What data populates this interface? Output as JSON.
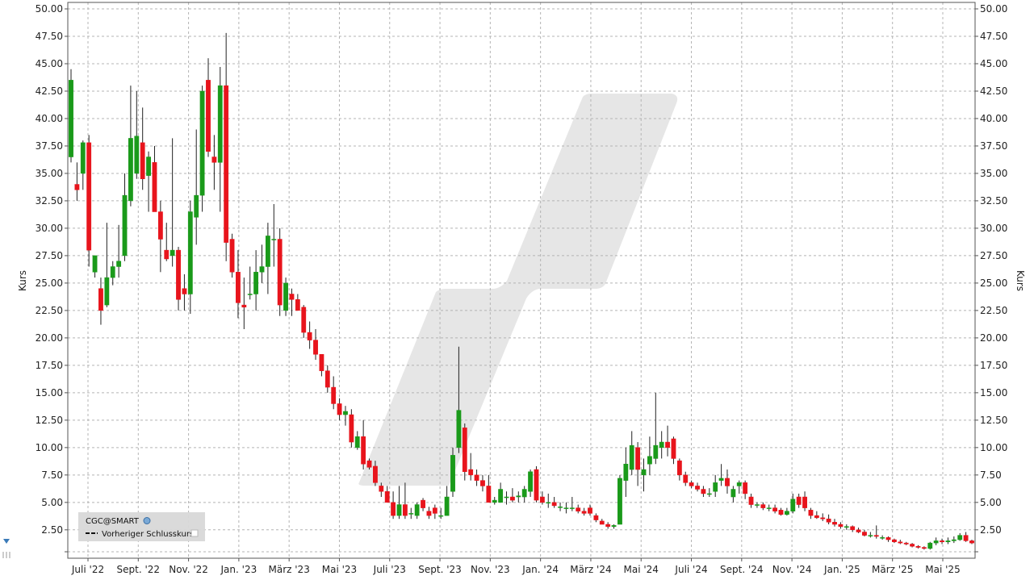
{
  "chart_data": {
    "type": "candlestick",
    "ylabel": "Kurs",
    "ylim": [
      0,
      51
    ],
    "yticks": [
      2.5,
      5,
      7.5,
      10,
      12.5,
      15,
      17.5,
      20,
      22.5,
      25,
      27.5,
      30,
      32.5,
      35,
      37.5,
      40,
      42.5,
      45,
      47.5,
      50
    ],
    "ytick_labels": [
      "2.50",
      "5.00",
      "7.50",
      "10.00",
      "12.50",
      "15.00",
      "17.50",
      "20.00",
      "22.50",
      "25.00",
      "27.50",
      "30.00",
      "32.50",
      "35.00",
      "37.50",
      "40.00",
      "42.50",
      "45.00",
      "47.50",
      "50.00"
    ],
    "xticks": [
      "Juli '22",
      "Sept. '22",
      "Nov. '22",
      "Jan. '23",
      "März '23",
      "Mai '23",
      "Juli '23",
      "Sept. '23",
      "Nov. '23",
      "Jan. '24",
      "März '24",
      "Mai '24",
      "Juli '24",
      "Sept. '24",
      "Nov. '24",
      "Jan. '25",
      "März '25",
      "Mai '25"
    ],
    "grid": true,
    "up_color": "#1a9a1a",
    "down_color": "#e8141c",
    "candles": [
      {
        "o": 36.5,
        "h": 44.5,
        "l": 36.0,
        "c": 43.5
      },
      {
        "o": 34.0,
        "h": 36.0,
        "l": 32.5,
        "c": 33.5
      },
      {
        "o": 35.0,
        "h": 38.0,
        "l": 33.5,
        "c": 37.8
      },
      {
        "o": 37.8,
        "h": 38.5,
        "l": 26.5,
        "c": 28.0
      },
      {
        "o": 26.0,
        "h": 27.5,
        "l": 25.5,
        "c": 27.5
      },
      {
        "o": 24.5,
        "h": 25.5,
        "l": 21.2,
        "c": 22.5
      },
      {
        "o": 23.0,
        "h": 30.5,
        "l": 22.8,
        "c": 25.5
      },
      {
        "o": 25.5,
        "h": 27.0,
        "l": 24.8,
        "c": 26.5
      },
      {
        "o": 26.5,
        "h": 30.3,
        "l": 25.5,
        "c": 27.0
      },
      {
        "o": 27.5,
        "h": 35.0,
        "l": 27.0,
        "c": 33.0
      },
      {
        "o": 32.5,
        "h": 43.0,
        "l": 32.0,
        "c": 38.2
      },
      {
        "o": 35.0,
        "h": 42.5,
        "l": 34.5,
        "c": 38.4
      },
      {
        "o": 37.8,
        "h": 41.0,
        "l": 33.5,
        "c": 34.5
      },
      {
        "o": 34.8,
        "h": 37.0,
        "l": 31.5,
        "c": 36.5
      },
      {
        "o": 36.0,
        "h": 37.5,
        "l": 31.5,
        "c": 31.5
      },
      {
        "o": 31.5,
        "h": 32.5,
        "l": 26.0,
        "c": 29.0
      },
      {
        "o": 28.0,
        "h": 30.5,
        "l": 27.0,
        "c": 27.2
      },
      {
        "o": 27.5,
        "h": 38.2,
        "l": 26.5,
        "c": 28.0
      },
      {
        "o": 28.0,
        "h": 28.3,
        "l": 22.5,
        "c": 23.5
      },
      {
        "o": 24.5,
        "h": 25.8,
        "l": 22.5,
        "c": 24.0
      },
      {
        "o": 24.0,
        "h": 32.5,
        "l": 22.2,
        "c": 31.5
      },
      {
        "o": 31.0,
        "h": 39.0,
        "l": 28.5,
        "c": 33.0
      },
      {
        "o": 33.0,
        "h": 43.0,
        "l": 31.5,
        "c": 42.5
      },
      {
        "o": 43.5,
        "h": 45.5,
        "l": 36.5,
        "c": 37.0
      },
      {
        "o": 36.5,
        "h": 38.5,
        "l": 33.5,
        "c": 36.0
      },
      {
        "o": 36.0,
        "h": 44.7,
        "l": 31.5,
        "c": 43.0
      },
      {
        "o": 43.0,
        "h": 47.8,
        "l": 27.0,
        "c": 28.7
      },
      {
        "o": 29.0,
        "h": 29.5,
        "l": 25.5,
        "c": 26.0
      },
      {
        "o": 26.0,
        "h": 28.0,
        "l": 21.8,
        "c": 23.2
      },
      {
        "o": 23.0,
        "h": 25.5,
        "l": 20.8,
        "c": 22.8
      },
      {
        "o": 24.0,
        "h": 26.5,
        "l": 23.5,
        "c": 24.0
      },
      {
        "o": 24.0,
        "h": 28.0,
        "l": 22.5,
        "c": 26.0
      },
      {
        "o": 26.0,
        "h": 28.5,
        "l": 25.0,
        "c": 26.5
      },
      {
        "o": 26.5,
        "h": 30.5,
        "l": 24.0,
        "c": 29.3
      },
      {
        "o": 29.0,
        "h": 32.2,
        "l": 26.5,
        "c": 29.0
      },
      {
        "o": 29.0,
        "h": 30.0,
        "l": 22.0,
        "c": 23.0
      },
      {
        "o": 22.5,
        "h": 25.5,
        "l": 22.0,
        "c": 25.0
      },
      {
        "o": 24.0,
        "h": 24.5,
        "l": 22.0,
        "c": 23.5
      },
      {
        "o": 23.5,
        "h": 24.0,
        "l": 22.5,
        "c": 22.5
      },
      {
        "o": 22.8,
        "h": 23.0,
        "l": 20.0,
        "c": 20.5
      },
      {
        "o": 20.5,
        "h": 21.5,
        "l": 19.0,
        "c": 19.8
      },
      {
        "o": 19.8,
        "h": 20.8,
        "l": 18.0,
        "c": 18.5
      },
      {
        "o": 18.5,
        "h": 18.5,
        "l": 16.5,
        "c": 17.0
      },
      {
        "o": 17.0,
        "h": 17.5,
        "l": 15.0,
        "c": 15.5
      },
      {
        "o": 15.5,
        "h": 16.5,
        "l": 13.5,
        "c": 14.0
      },
      {
        "o": 14.0,
        "h": 14.5,
        "l": 12.5,
        "c": 13.0
      },
      {
        "o": 13.0,
        "h": 13.8,
        "l": 12.0,
        "c": 13.3
      },
      {
        "o": 13.0,
        "h": 13.5,
        "l": 10.0,
        "c": 10.5
      },
      {
        "o": 10.0,
        "h": 11.5,
        "l": 9.8,
        "c": 11.0
      },
      {
        "o": 11.0,
        "h": 12.5,
        "l": 8.0,
        "c": 8.5
      },
      {
        "o": 8.8,
        "h": 9.0,
        "l": 8.0,
        "c": 8.2
      },
      {
        "o": 8.3,
        "h": 8.8,
        "l": 6.5,
        "c": 6.8
      },
      {
        "o": 6.5,
        "h": 6.8,
        "l": 5.5,
        "c": 6.0
      },
      {
        "o": 6.0,
        "h": 6.5,
        "l": 5.0,
        "c": 5.0
      },
      {
        "o": 5.0,
        "h": 6.0,
        "l": 3.5,
        "c": 3.8
      },
      {
        "o": 3.8,
        "h": 6.5,
        "l": 3.5,
        "c": 4.8
      },
      {
        "o": 4.8,
        "h": 6.8,
        "l": 3.5,
        "c": 3.8
      },
      {
        "o": 4.0,
        "h": 4.5,
        "l": 3.5,
        "c": 4.0
      },
      {
        "o": 3.8,
        "h": 5.0,
        "l": 3.5,
        "c": 4.8
      },
      {
        "o": 5.2,
        "h": 5.4,
        "l": 4.2,
        "c": 4.5
      },
      {
        "o": 4.2,
        "h": 4.6,
        "l": 3.5,
        "c": 3.8
      },
      {
        "o": 4.5,
        "h": 4.8,
        "l": 3.5,
        "c": 4.0
      },
      {
        "o": 3.8,
        "h": 4.5,
        "l": 3.5,
        "c": 3.8
      },
      {
        "o": 3.8,
        "h": 6.5,
        "l": 3.8,
        "c": 5.5
      },
      {
        "o": 6.0,
        "h": 10.0,
        "l": 5.5,
        "c": 9.3
      },
      {
        "o": 10.0,
        "h": 19.2,
        "l": 9.5,
        "c": 13.4
      },
      {
        "o": 11.8,
        "h": 12.2,
        "l": 7.0,
        "c": 7.8
      },
      {
        "o": 8.0,
        "h": 9.5,
        "l": 7.0,
        "c": 7.5
      },
      {
        "o": 7.5,
        "h": 8.0,
        "l": 6.5,
        "c": 7.0
      },
      {
        "o": 7.0,
        "h": 7.5,
        "l": 6.0,
        "c": 6.5
      },
      {
        "o": 6.5,
        "h": 7.5,
        "l": 5.0,
        "c": 5.0
      },
      {
        "o": 5.0,
        "h": 5.5,
        "l": 4.8,
        "c": 5.2
      },
      {
        "o": 5.0,
        "h": 6.8,
        "l": 5.0,
        "c": 6.2
      },
      {
        "o": 5.5,
        "h": 6.0,
        "l": 4.8,
        "c": 5.5
      },
      {
        "o": 5.5,
        "h": 6.3,
        "l": 5.0,
        "c": 5.2
      },
      {
        "o": 5.5,
        "h": 6.0,
        "l": 5.0,
        "c": 5.6
      },
      {
        "o": 5.5,
        "h": 6.5,
        "l": 5.0,
        "c": 6.2
      },
      {
        "o": 6.0,
        "h": 8.0,
        "l": 5.5,
        "c": 7.8
      },
      {
        "o": 8.0,
        "h": 8.3,
        "l": 5.0,
        "c": 5.2
      },
      {
        "o": 5.5,
        "h": 6.0,
        "l": 4.8,
        "c": 5.0
      },
      {
        "o": 5.0,
        "h": 5.8,
        "l": 4.5,
        "c": 5.0
      },
      {
        "o": 5.0,
        "h": 5.5,
        "l": 4.5,
        "c": 4.7
      },
      {
        "o": 4.6,
        "h": 5.0,
        "l": 4.2,
        "c": 4.6
      },
      {
        "o": 4.5,
        "h": 5.0,
        "l": 4.0,
        "c": 4.5
      },
      {
        "o": 4.5,
        "h": 5.5,
        "l": 4.2,
        "c": 4.5
      },
      {
        "o": 4.5,
        "h": 4.8,
        "l": 4.0,
        "c": 4.2
      },
      {
        "o": 4.2,
        "h": 4.5,
        "l": 3.8,
        "c": 4.0
      },
      {
        "o": 4.5,
        "h": 4.8,
        "l": 3.8,
        "c": 4.0
      },
      {
        "o": 3.8,
        "h": 4.0,
        "l": 3.2,
        "c": 3.4
      },
      {
        "o": 3.3,
        "h": 3.5,
        "l": 3.0,
        "c": 3.0
      },
      {
        "o": 3.0,
        "h": 3.2,
        "l": 2.6,
        "c": 2.8
      },
      {
        "o": 2.8,
        "h": 3.0,
        "l": 2.6,
        "c": 2.9
      },
      {
        "o": 3.0,
        "h": 7.5,
        "l": 3.0,
        "c": 7.2
      },
      {
        "o": 7.0,
        "h": 10.0,
        "l": 5.5,
        "c": 8.5
      },
      {
        "o": 8.0,
        "h": 11.5,
        "l": 7.5,
        "c": 10.2
      },
      {
        "o": 10.0,
        "h": 10.5,
        "l": 6.5,
        "c": 8.0
      },
      {
        "o": 7.5,
        "h": 9.0,
        "l": 6.0,
        "c": 8.0
      },
      {
        "o": 8.5,
        "h": 11.0,
        "l": 7.5,
        "c": 9.2
      },
      {
        "o": 9.0,
        "h": 15.0,
        "l": 8.5,
        "c": 10.2
      },
      {
        "o": 10.0,
        "h": 11.5,
        "l": 9.0,
        "c": 10.5
      },
      {
        "o": 10.5,
        "h": 12.0,
        "l": 9.2,
        "c": 10.0
      },
      {
        "o": 10.8,
        "h": 11.0,
        "l": 8.5,
        "c": 9.0
      },
      {
        "o": 8.8,
        "h": 9.0,
        "l": 7.0,
        "c": 7.5
      },
      {
        "o": 7.5,
        "h": 7.8,
        "l": 6.5,
        "c": 6.8
      },
      {
        "o": 6.8,
        "h": 7.0,
        "l": 6.3,
        "c": 6.5
      },
      {
        "o": 6.5,
        "h": 6.8,
        "l": 6.0,
        "c": 6.2
      },
      {
        "o": 6.2,
        "h": 6.5,
        "l": 5.5,
        "c": 5.8
      },
      {
        "o": 5.8,
        "h": 6.3,
        "l": 5.5,
        "c": 5.8
      },
      {
        "o": 6.0,
        "h": 7.5,
        "l": 5.5,
        "c": 6.8
      },
      {
        "o": 7.0,
        "h": 8.5,
        "l": 6.5,
        "c": 7.2
      },
      {
        "o": 7.2,
        "h": 8.0,
        "l": 5.8,
        "c": 6.5
      },
      {
        "o": 5.5,
        "h": 6.5,
        "l": 5.0,
        "c": 6.2
      },
      {
        "o": 6.5,
        "h": 7.0,
        "l": 5.8,
        "c": 6.8
      },
      {
        "o": 6.8,
        "h": 7.0,
        "l": 5.3,
        "c": 5.8
      },
      {
        "o": 5.5,
        "h": 5.8,
        "l": 4.5,
        "c": 4.8
      },
      {
        "o": 4.8,
        "h": 5.0,
        "l": 4.5,
        "c": 4.8
      },
      {
        "o": 4.8,
        "h": 5.0,
        "l": 4.3,
        "c": 4.5
      },
      {
        "o": 4.5,
        "h": 4.8,
        "l": 4.2,
        "c": 4.5
      },
      {
        "o": 4.5,
        "h": 4.8,
        "l": 4.0,
        "c": 4.2
      },
      {
        "o": 4.3,
        "h": 4.5,
        "l": 3.8,
        "c": 3.9
      },
      {
        "o": 3.9,
        "h": 4.5,
        "l": 3.8,
        "c": 4.2
      },
      {
        "o": 4.2,
        "h": 5.8,
        "l": 4.0,
        "c": 5.3
      },
      {
        "o": 5.5,
        "h": 5.8,
        "l": 4.5,
        "c": 4.8
      },
      {
        "o": 5.5,
        "h": 6.0,
        "l": 4.2,
        "c": 4.5
      },
      {
        "o": 4.3,
        "h": 4.5,
        "l": 3.5,
        "c": 3.8
      },
      {
        "o": 3.8,
        "h": 4.2,
        "l": 3.5,
        "c": 3.6
      },
      {
        "o": 3.6,
        "h": 4.0,
        "l": 3.3,
        "c": 3.5
      },
      {
        "o": 3.5,
        "h": 3.9,
        "l": 3.0,
        "c": 3.2
      },
      {
        "o": 3.2,
        "h": 3.5,
        "l": 2.8,
        "c": 3.0
      },
      {
        "o": 3.0,
        "h": 3.2,
        "l": 2.6,
        "c": 2.8
      },
      {
        "o": 2.8,
        "h": 3.0,
        "l": 2.5,
        "c": 2.8
      },
      {
        "o": 2.8,
        "h": 2.9,
        "l": 2.3,
        "c": 2.5
      },
      {
        "o": 2.5,
        "h": 2.7,
        "l": 2.2,
        "c": 2.3
      },
      {
        "o": 2.3,
        "h": 2.5,
        "l": 1.9,
        "c": 2.0
      },
      {
        "o": 2.0,
        "h": 2.3,
        "l": 1.8,
        "c": 2.0
      },
      {
        "o": 2.0,
        "h": 2.9,
        "l": 1.7,
        "c": 1.9
      },
      {
        "o": 1.8,
        "h": 2.0,
        "l": 1.6,
        "c": 1.8
      },
      {
        "o": 1.8,
        "h": 1.9,
        "l": 1.4,
        "c": 1.6
      },
      {
        "o": 1.6,
        "h": 1.7,
        "l": 1.3,
        "c": 1.4
      },
      {
        "o": 1.4,
        "h": 1.6,
        "l": 1.2,
        "c": 1.3
      },
      {
        "o": 1.3,
        "h": 1.4,
        "l": 1.1,
        "c": 1.2
      },
      {
        "o": 1.2,
        "h": 1.3,
        "l": 0.9,
        "c": 1.0
      },
      {
        "o": 1.0,
        "h": 1.1,
        "l": 0.8,
        "c": 0.9
      },
      {
        "o": 0.9,
        "h": 1.0,
        "l": 0.7,
        "c": 0.8
      },
      {
        "o": 0.8,
        "h": 1.4,
        "l": 0.7,
        "c": 1.3
      },
      {
        "o": 1.3,
        "h": 1.8,
        "l": 1.1,
        "c": 1.5
      },
      {
        "o": 1.5,
        "h": 1.7,
        "l": 1.2,
        "c": 1.4
      },
      {
        "o": 1.4,
        "h": 1.8,
        "l": 1.2,
        "c": 1.5
      },
      {
        "o": 1.5,
        "h": 1.9,
        "l": 1.3,
        "c": 1.6
      },
      {
        "o": 1.6,
        "h": 2.2,
        "l": 1.5,
        "c": 2.0
      },
      {
        "o": 2.0,
        "h": 2.3,
        "l": 1.4,
        "c": 1.5
      },
      {
        "o": 1.5,
        "h": 1.6,
        "l": 1.2,
        "c": 1.3
      }
    ]
  },
  "legend": {
    "symbol": "CGC@SMART",
    "prev_close_label": "Vorheriger Schlusskurs"
  }
}
